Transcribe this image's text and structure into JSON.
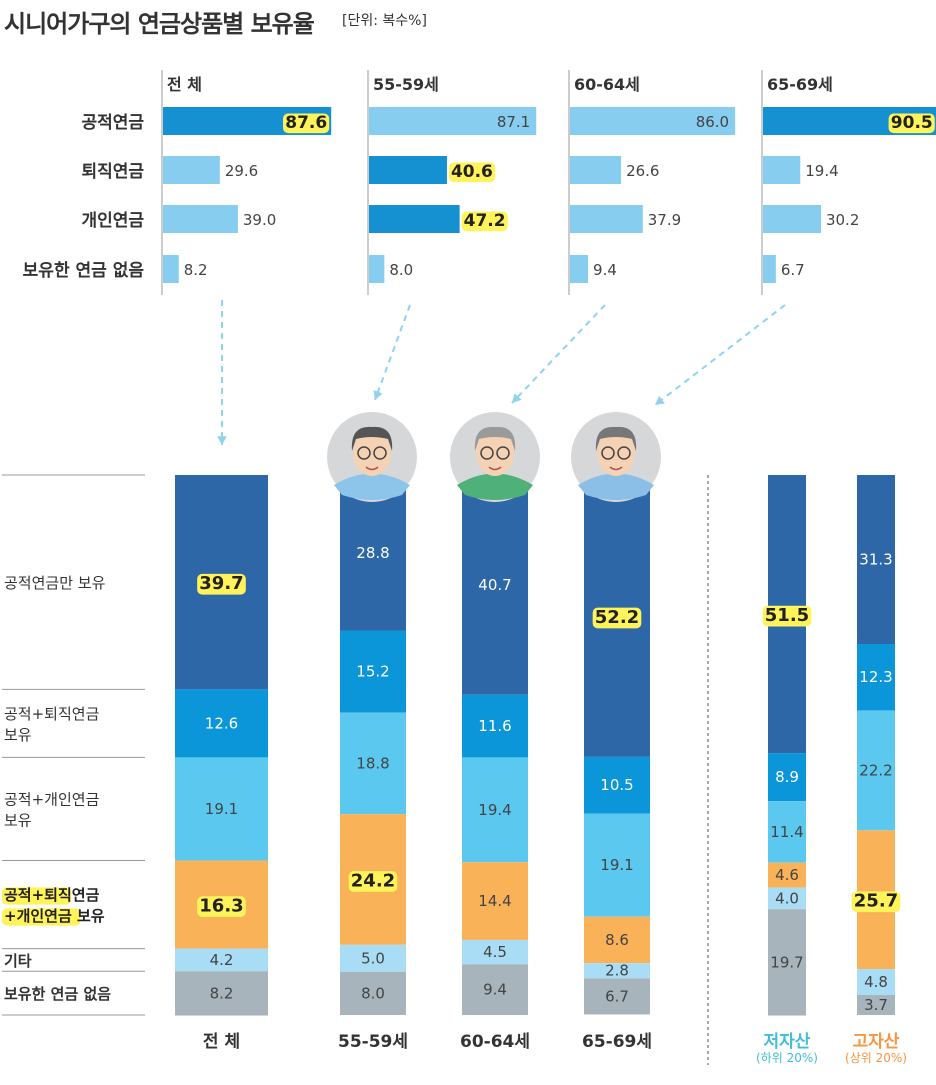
{
  "title": "시니어가구의 연금상품별 보유율",
  "unit": "[단위: 복수%]",
  "chart_data": [
    {
      "type": "bar",
      "orientation": "horizontal",
      "categories": [
        "공적연금",
        "퇴직연금",
        "개인연금",
        "보유한 연금 없음"
      ],
      "panels": [
        {
          "name": "전  체",
          "values": [
            87.6,
            29.6,
            39.0,
            8.2
          ],
          "highlight": [
            true,
            false,
            false,
            false
          ]
        },
        {
          "name": "55-59세",
          "values": [
            87.1,
            40.6,
            47.2,
            8.0
          ],
          "highlight": [
            false,
            true,
            true,
            false
          ]
        },
        {
          "name": "60-64세",
          "values": [
            86.0,
            26.6,
            37.9,
            9.4
          ],
          "highlight": [
            false,
            false,
            false,
            false
          ]
        },
        {
          "name": "65-69세",
          "values": [
            90.5,
            19.4,
            30.2,
            6.7
          ],
          "highlight": [
            true,
            false,
            false,
            false
          ]
        }
      ],
      "colors": {
        "highlight": "#1590d0",
        "normal": "#86cdf0"
      }
    },
    {
      "type": "bar",
      "orientation": "stacked-vertical",
      "segments": [
        "공적연금만 보유",
        "공적+퇴직연금 보유",
        "공적+개인연금 보유",
        "공적+퇴직연금 +개인연금 보유",
        "기타",
        "보유한 연금 없음"
      ],
      "segment_label_lines": [
        [
          "공적연금만 보유"
        ],
        [
          "공적+퇴직연금",
          "보유"
        ],
        [
          "공적+개인연금",
          "보유"
        ],
        [
          "공적+퇴직연금",
          "+개인연금 보유"
        ],
        [
          "기타"
        ],
        [
          "보유한 연금 없음"
        ]
      ],
      "segment_highlight": [
        false,
        false,
        false,
        true,
        false,
        false
      ],
      "segment_colors": [
        "#2e67a8",
        "#0a96d8",
        "#5bc8f0",
        "#f9b257",
        "#a9ddf5",
        "#a7b4bc"
      ],
      "segment_text_colors": [
        "#fff",
        "#fff",
        "#444",
        "#444",
        "#444",
        "#444"
      ],
      "bars": [
        {
          "name": "전  체",
          "values": [
            39.7,
            12.6,
            19.1,
            16.3,
            4.2,
            8.2
          ],
          "highlight": [
            true,
            false,
            false,
            true,
            false,
            false
          ]
        },
        {
          "name": "55-59세",
          "values": [
            28.8,
            15.2,
            18.8,
            24.2,
            5.0,
            8.0
          ],
          "highlight": [
            false,
            false,
            false,
            true,
            false,
            false
          ]
        },
        {
          "name": "60-64세",
          "values": [
            40.7,
            11.6,
            19.4,
            14.4,
            4.5,
            9.4
          ],
          "highlight": [
            false,
            false,
            false,
            false,
            false,
            false
          ]
        },
        {
          "name": "65-69세",
          "values": [
            52.2,
            10.5,
            19.1,
            8.6,
            2.8,
            6.7
          ],
          "highlight": [
            true,
            false,
            false,
            false,
            false,
            false
          ]
        },
        {
          "name": "저자산",
          "sub": "(하위 20%)",
          "color": "#3fbfd6",
          "values": [
            51.5,
            8.9,
            11.4,
            4.6,
            4.0,
            19.7
          ],
          "highlight": [
            true,
            false,
            false,
            false,
            false,
            false
          ]
        },
        {
          "name": "고자산",
          "sub": "(상위 20%)",
          "color": "#f7963f",
          "values": [
            31.3,
            12.3,
            22.2,
            25.7,
            4.8,
            3.7
          ],
          "highlight": [
            false,
            false,
            false,
            true,
            false,
            false
          ]
        }
      ]
    }
  ]
}
